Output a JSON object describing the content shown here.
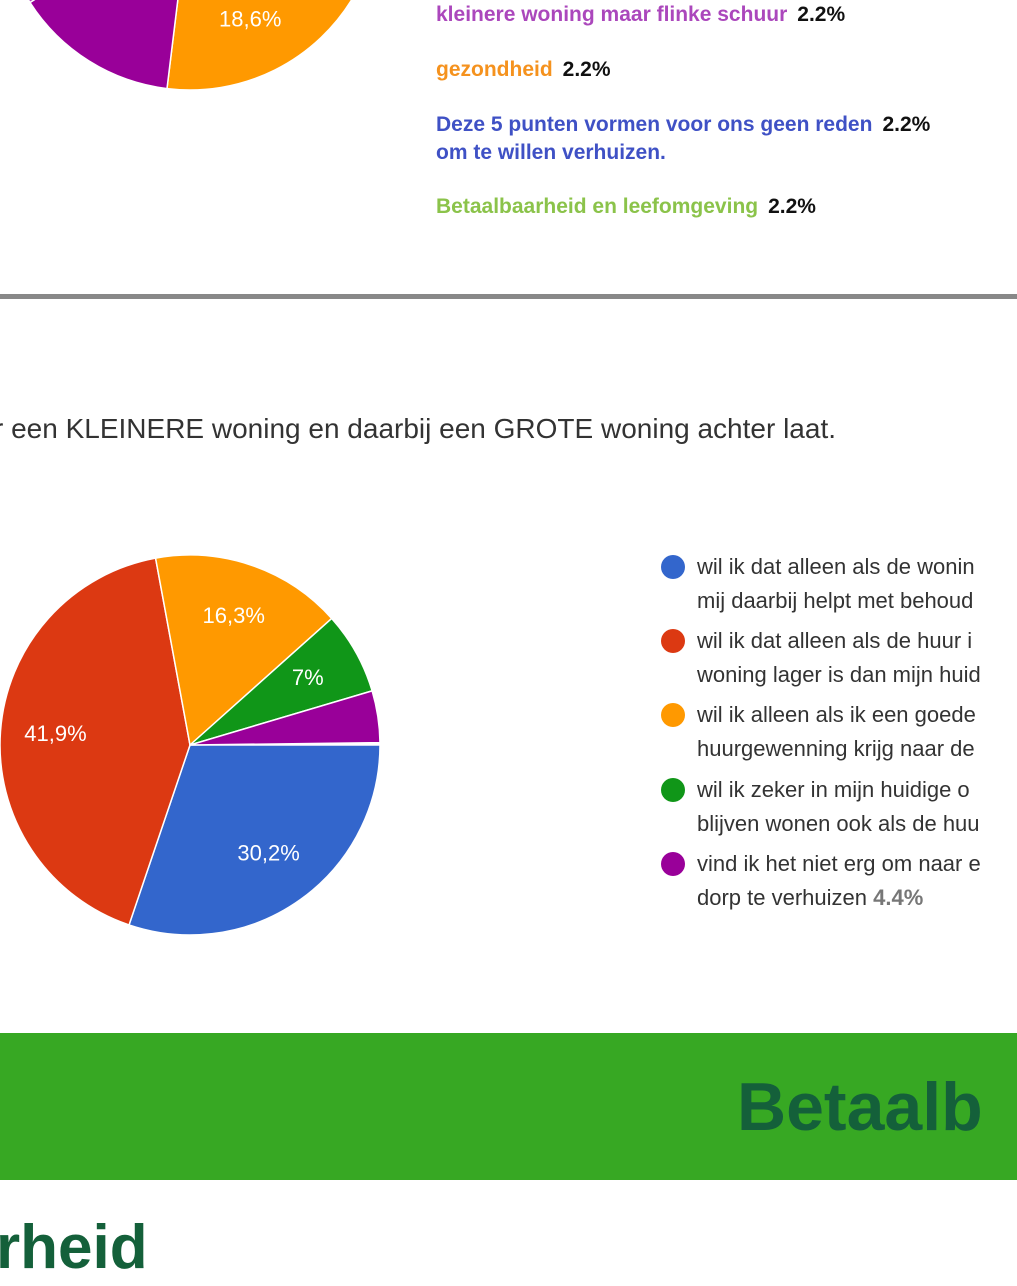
{
  "chart_data": [
    {
      "type": "pie",
      "categories": [
        null,
        null,
        "kleinere woning maar flinke schuur",
        "gezondheid",
        "Deze 5 punten vormen voor ons geen reden\nom te willen verhuizen.",
        "Betaalbaarheid en leefomgeving"
      ],
      "values": [
        18.6,
        14,
        2.2,
        2.2,
        2.2,
        2.2
      ],
      "value_labels": [
        "18,6%",
        null,
        null,
        null,
        null,
        null
      ],
      "legend_value_labels": [
        null,
        null,
        "2.2%",
        "2.2%",
        "2.2%",
        "2.2%"
      ],
      "colors": [
        "#ff9900",
        "#990099",
        "#ab47bc",
        "#f5921e",
        "#3f51c5",
        "#8bc34a"
      ]
    },
    {
      "type": "pie",
      "categories": [
        "wil ik dat alleen als de wonin\nmij daarbij helpt met behoud",
        "wil ik dat alleen als de huur i\nwoning lager is dan mijn huid",
        "wil ik alleen als ik een goede\nhuurgewenning krijg naar de",
        "wil ik zeker in mijn huidige o\nblijven wonen ook als de huu",
        "vind ik het niet erg om naar e\ndorp te verhuizen"
      ],
      "values": [
        30.2,
        41.9,
        16.3,
        7,
        4.4
      ],
      "value_labels": [
        "30,2%",
        "41,9%",
        "16,3%",
        "7%",
        null
      ],
      "legend_value_labels": [
        null,
        null,
        null,
        null,
        "4.4%"
      ],
      "colors": [
        "#3366cc",
        "#dc3912",
        "#ff9900",
        "#109618",
        "#990099"
      ]
    }
  ],
  "question": "r een KLEINERE woning en daarbij een GROTE woning achter laat.",
  "banner": "Betaalb",
  "heading": "rheid"
}
